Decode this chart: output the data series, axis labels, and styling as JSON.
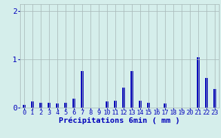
{
  "xlabel": "Précipitations 6min ( mm )",
  "background_color": "#d5eeeb",
  "bar_color": "#0000bb",
  "ylim": [
    0,
    2.15
  ],
  "yticks": [
    0,
    1,
    2
  ],
  "categories": [
    0,
    1,
    2,
    3,
    4,
    5,
    6,
    7,
    8,
    9,
    10,
    11,
    12,
    13,
    14,
    15,
    16,
    17,
    18,
    19,
    20,
    21,
    22,
    23
  ],
  "values": [
    0.06,
    0.13,
    0.1,
    0.1,
    0.09,
    0.1,
    0.18,
    0.76,
    0.0,
    0.0,
    0.13,
    0.15,
    0.42,
    0.76,
    0.14,
    0.1,
    0.0,
    0.08,
    0.0,
    0.0,
    0.0,
    1.04,
    0.62,
    0.38
  ],
  "grid_color": "#aabbbb",
  "xlabel_fontsize": 8,
  "text_color": "#0000bb",
  "tick_fontsize": 6.5,
  "ytick_fontsize": 8
}
